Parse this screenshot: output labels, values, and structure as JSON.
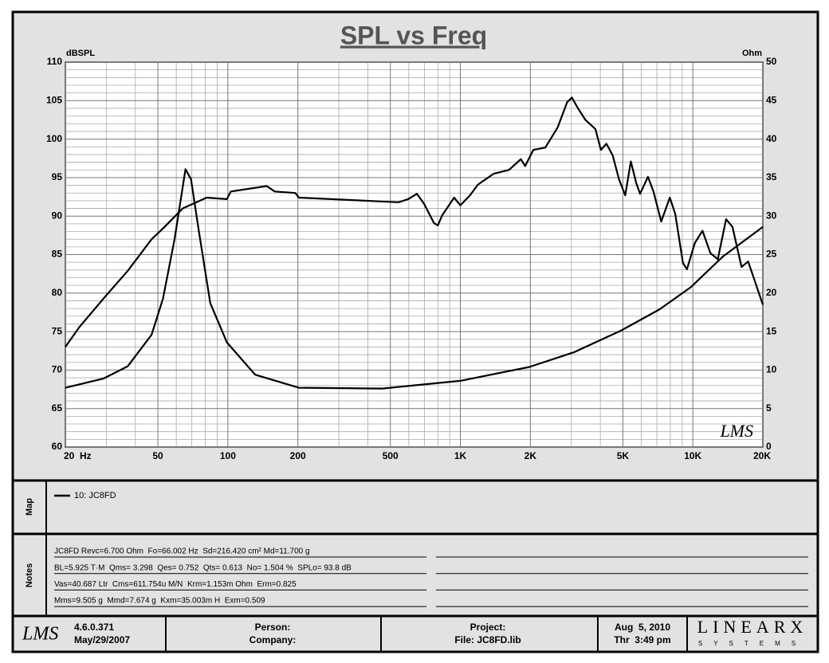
{
  "chart_data": {
    "type": "line",
    "title": "SPL vs Freq",
    "y_label": "dBSPL",
    "y2_label": "Ohm",
    "watermark": "LMS",
    "xscale": "log",
    "xlim": [
      20,
      20000
    ],
    "xticks": [
      {
        "value": 20,
        "label": "20  Hz"
      },
      50,
      100,
      200,
      500,
      {
        "value": 1000,
        "label": "1K"
      },
      {
        "value": 2000,
        "label": "2K"
      },
      {
        "value": 5000,
        "label": "5K"
      },
      {
        "value": 10000,
        "label": "10K"
      },
      {
        "value": 20000,
        "label": "20K"
      }
    ],
    "ylim": [
      60,
      110
    ],
    "yticks": [
      60,
      65,
      70,
      75,
      80,
      85,
      90,
      95,
      100,
      105,
      110
    ],
    "y2lim": [
      0,
      50
    ],
    "y2ticks": [
      0,
      5,
      10,
      15,
      20,
      25,
      30,
      35,
      40,
      45,
      50
    ],
    "grid": true,
    "minor_grid": {
      "x": "log",
      "y_step": 1
    },
    "series": [
      {
        "name": "10: JC8FD",
        "color": "#000000",
        "x": [
          20,
          23,
          29.2,
          37.1,
          47,
          52.6,
          64,
          81,
          99,
          103,
          147,
          159,
          195,
          202,
          542,
          596,
          650,
          698,
          770,
          800,
          835,
          940,
          1000,
          1100,
          1190,
          1390,
          1620,
          1820,
          1900,
          2060,
          2320,
          2620,
          2880,
          3020,
          3190,
          3450,
          3810,
          4020,
          4250,
          4520,
          4810,
          5120,
          5410,
          5710,
          5930,
          6410,
          6770,
          7310,
          7960,
          8400,
          9070,
          9430,
          10200,
          11000,
          11900,
          12800,
          13900,
          14800,
          16200,
          17300,
          20000
        ],
        "values": [
          73.0,
          75.6,
          79.3,
          82.9,
          87.0,
          88.4,
          91.0,
          92.4,
          92.2,
          93.2,
          93.9,
          93.2,
          93.0,
          92.4,
          91.8,
          92.2,
          92.9,
          91.6,
          89.1,
          88.8,
          90.1,
          92.4,
          91.4,
          92.7,
          94.1,
          95.5,
          96.0,
          97.4,
          96.5,
          98.6,
          98.9,
          101.5,
          104.8,
          105.4,
          104.1,
          102.5,
          101.3,
          98.6,
          99.4,
          97.9,
          94.8,
          92.7,
          97.1,
          94.3,
          92.9,
          95.1,
          93.2,
          89.3,
          92.4,
          90.3,
          83.9,
          83.1,
          86.5,
          88.1,
          85.2,
          84.4,
          89.6,
          88.6,
          83.4,
          84.1,
          78.5
        ]
      },
      {
        "axis": "y2",
        "color": "#000000",
        "x": [
          20,
          29.2,
          37.1,
          47,
          52.6,
          59,
          65.7,
          69.4,
          75,
          84,
          99,
          131,
          202,
          461,
          1000,
          1980,
          3070,
          4890,
          7200,
          9830,
          13400,
          20000
        ],
        "values": [
          7.7,
          8.9,
          10.5,
          14.6,
          19.3,
          27.0,
          36.1,
          34.8,
          28.1,
          18.7,
          13.6,
          9.4,
          7.7,
          7.6,
          8.6,
          10.4,
          12.3,
          15.1,
          17.9,
          20.8,
          24.7,
          28.6
        ]
      }
    ]
  },
  "map": {
    "title": "Map"
  },
  "notes": {
    "title": "Notes",
    "lines": [
      "JC8FD Revc=6.700 Ohm  Fo=66.002 Hz  Sd=216.420 cm² Md=11.700 g",
      "BL=5.925 T·M  Qms= 3.298  Qes= 0.752  Qts= 0.613  No= 1.504 %  SPLo= 93.8 dB",
      "Vas=40.687 Ltr  Cms=611.754u M/N  Krm=1.153m Ohm  Erm=0.825",
      "Mms=9.505 g  Mmd=7.674 g  Kxm=35.003m H  Exm=0.509"
    ]
  },
  "footer": {
    "logo": "LMS",
    "version": "4.6.0.371",
    "version_date": "May/29/2007",
    "person": "Person:",
    "company": "Company:",
    "project": "Project:",
    "file": "File: JC8FD.lib",
    "date": "Aug  5, 2010",
    "time": "Thr  3:49 pm",
    "brand": "LINEARX",
    "brand_sub": "SYSTEMS"
  }
}
